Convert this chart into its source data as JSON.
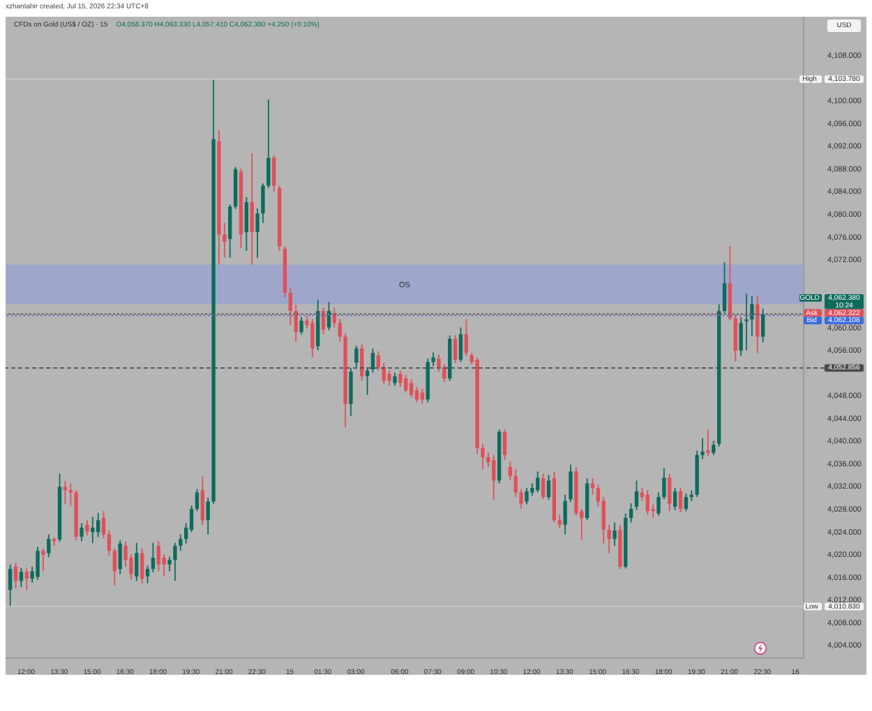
{
  "chart_data": {
    "type": "candlestick",
    "title": "CFDs on Gold (US$ / OZ) · 15",
    "subtitle": "O4,058.370 H4,063.330 L4,057.410 C4,062.380 +4.250 (+0.10%)",
    "ylabel": "USD",
    "annotations": [
      "xzhantahir created, Jul 15, 2026 22:34 UTC+8",
      "10:24"
    ],
    "categories": [
      null,
      null,
      null,
      "12:00",
      null,
      null,
      null,
      null,
      null,
      "13:30",
      null,
      null,
      null,
      null,
      null,
      "15:00",
      null,
      null,
      null,
      null,
      null,
      "16:30",
      null,
      null,
      null,
      null,
      null,
      "18:00",
      null,
      null,
      null,
      null,
      null,
      "19:30",
      null,
      null,
      null,
      null,
      null,
      "21:00",
      null,
      null,
      null,
      null,
      null,
      "22:30",
      null,
      null,
      null,
      null,
      null,
      "15",
      null,
      null,
      null,
      null,
      null,
      "01:30",
      null,
      null,
      null,
      null,
      null,
      "03:00",
      null,
      null,
      null,
      null,
      null,
      null,
      null,
      "06:00",
      null,
      null,
      null,
      null,
      null,
      "07:30",
      null,
      null,
      null,
      null,
      null,
      "09:00",
      null,
      null,
      null,
      null,
      null,
      "10:30",
      null,
      null,
      null,
      null,
      null,
      "12:00",
      null,
      null,
      null,
      null,
      null,
      "13:30",
      null,
      null,
      null,
      null,
      null,
      "15:00",
      null,
      null,
      null,
      null,
      null,
      "16:30",
      null,
      null,
      null,
      null,
      null,
      "18:00",
      null,
      null,
      null,
      null,
      null,
      "19:30",
      null,
      null,
      null,
      null,
      null,
      "21:00",
      null,
      null,
      null,
      null,
      null,
      "22:30",
      null,
      null,
      null,
      null,
      null,
      "16",
      null
    ],
    "ohlc": [
      [
        4013.7,
        4018.2,
        4010.83,
        4017.4
      ],
      [
        4017.8,
        4018.5,
        4014.0,
        4015.3
      ],
      [
        4015.3,
        4017.6,
        4014.2,
        4016.9
      ],
      [
        4016.9,
        4017.5,
        4013.7,
        4015.7
      ],
      [
        4015.7,
        4017.8,
        4015.0,
        4017.0
      ],
      [
        4016.0,
        4021.3,
        4015.5,
        4020.6
      ],
      [
        4020.6,
        4021.0,
        4017.0,
        4019.9
      ],
      [
        4020.2,
        4023.5,
        4019.5,
        4022.7
      ],
      [
        4022.7,
        4023.0,
        4021.5,
        4022.3
      ],
      [
        4022.6,
        4034.2,
        4022.2,
        4031.9
      ],
      [
        4031.9,
        4032.9,
        4028.9,
        4031.3
      ],
      [
        4031.3,
        4032.5,
        4028.5,
        4030.9
      ],
      [
        4030.9,
        4031.3,
        4022.5,
        4023.1
      ],
      [
        4023.1,
        4025.5,
        4022.3,
        4024.7
      ],
      [
        4025.2,
        4026.0,
        4023.3,
        4024.0
      ],
      [
        4023.9,
        4026.6,
        4022.0,
        4024.7
      ],
      [
        4023.9,
        4027.3,
        4023.0,
        4026.0
      ],
      [
        4026.4,
        4027.6,
        4022.8,
        4023.5
      ],
      [
        4023.5,
        4024.2,
        4019.8,
        4020.6
      ],
      [
        4020.6,
        4021.0,
        4014.5,
        4017.0
      ],
      [
        4017.4,
        4022.5,
        4016.5,
        4021.9
      ],
      [
        4021.5,
        4022.3,
        4017.8,
        4019.0
      ],
      [
        4019.4,
        4020.0,
        4015.5,
        4016.5
      ],
      [
        4016.1,
        4022.0,
        4015.3,
        4020.2
      ],
      [
        4020.2,
        4021.0,
        4014.8,
        4015.7
      ],
      [
        4016.1,
        4018.0,
        4014.9,
        4017.4
      ],
      [
        4017.4,
        4022.0,
        4016.8,
        4019.4
      ],
      [
        4021.5,
        4022.3,
        4017.0,
        4018.2
      ],
      [
        4019.4,
        4020.0,
        4016.1,
        4018.2
      ],
      [
        4018.2,
        4019.6,
        4017.0,
        4019.0
      ],
      [
        4019.0,
        4022.0,
        4015.3,
        4021.5
      ],
      [
        4021.5,
        4023.5,
        4020.6,
        4022.7
      ],
      [
        4022.7,
        4025.5,
        4021.9,
        4024.7
      ],
      [
        4024.3,
        4028.6,
        4023.9,
        4028.0
      ],
      [
        4028.0,
        4031.5,
        4027.6,
        4030.9
      ],
      [
        4031.3,
        4033.7,
        4025.2,
        4026.0
      ],
      [
        4026.0,
        4030.0,
        4023.5,
        4029.3
      ],
      [
        4029.3,
        4103.78,
        4028.9,
        4093.2
      ],
      [
        4092.8,
        4094.8,
        4071.1,
        4076.4
      ],
      [
        4076.4,
        4078.4,
        4072.3,
        4075.1
      ],
      [
        4075.6,
        4081.7,
        4072.3,
        4081.3
      ],
      [
        4081.3,
        4088.3,
        4080.9,
        4087.9
      ],
      [
        4087.5,
        4088.0,
        4074.0,
        4076.4
      ],
      [
        4076.8,
        4083.0,
        4073.5,
        4082.1
      ],
      [
        4082.1,
        4090.7,
        4071.1,
        4076.8
      ],
      [
        4076.8,
        4081.0,
        4072.3,
        4080.1
      ],
      [
        4080.1,
        4085.4,
        4078.4,
        4085.0
      ],
      [
        4085.0,
        4100.2,
        4084.6,
        4089.9
      ],
      [
        4089.9,
        4090.3,
        4084.0,
        4085.0
      ],
      [
        4084.6,
        4085.0,
        4073.5,
        4074.3
      ],
      [
        4073.9,
        4074.3,
        4065.3,
        4066.1
      ],
      [
        4066.1,
        4067.0,
        4060.4,
        4062.9
      ],
      [
        4062.9,
        4064.0,
        4057.5,
        4059.2
      ],
      [
        4059.2,
        4061.8,
        4058.8,
        4061.2
      ],
      [
        4061.2,
        4062.0,
        4059.8,
        4060.4
      ],
      [
        4060.8,
        4061.5,
        4054.7,
        4056.3
      ],
      [
        4056.7,
        4064.9,
        4056.0,
        4062.9
      ],
      [
        4062.9,
        4063.5,
        4058.8,
        4059.6
      ],
      [
        4060.0,
        4064.5,
        4059.5,
        4062.9
      ],
      [
        4062.5,
        4063.5,
        4060.0,
        4060.8
      ],
      [
        4060.8,
        4061.5,
        4057.5,
        4058.4
      ],
      [
        4058.4,
        4059.0,
        4042.4,
        4046.5
      ],
      [
        4046.5,
        4052.8,
        4044.4,
        4052.2
      ],
      [
        4053.8,
        4056.8,
        4053.0,
        4056.3
      ],
      [
        4056.3,
        4057.0,
        4050.6,
        4051.4
      ],
      [
        4051.4,
        4053.0,
        4048.1,
        4052.4
      ],
      [
        4052.6,
        4056.3,
        4052.0,
        4055.5
      ],
      [
        4055.1,
        4055.8,
        4052.4,
        4053.0
      ],
      [
        4053.0,
        4053.8,
        4050.0,
        4050.6
      ],
      [
        4051.8,
        4052.4,
        4049.7,
        4050.6
      ],
      [
        4050.2,
        4052.0,
        4049.7,
        4051.4
      ],
      [
        4051.8,
        4052.4,
        4049.5,
        4050.2
      ],
      [
        4051.0,
        4051.6,
        4048.5,
        4048.9
      ],
      [
        4050.2,
        4050.8,
        4047.7,
        4048.1
      ],
      [
        4048.9,
        4049.5,
        4046.8,
        4047.3
      ],
      [
        4048.5,
        4049.2,
        4046.5,
        4047.3
      ],
      [
        4047.3,
        4054.5,
        4046.8,
        4053.9
      ],
      [
        4053.9,
        4055.6,
        4053.2,
        4054.7
      ],
      [
        4054.5,
        4055.2,
        4052.2,
        4053.0
      ],
      [
        4053.0,
        4053.5,
        4050.4,
        4051.0
      ],
      [
        4051.0,
        4058.6,
        4050.6,
        4058.0
      ],
      [
        4058.0,
        4058.6,
        4053.7,
        4054.3
      ],
      [
        4054.3,
        4060.0,
        4053.9,
        4058.8
      ],
      [
        4058.8,
        4061.5,
        4055.0,
        4055.5
      ],
      [
        4055.1,
        4055.5,
        4053.5,
        4053.9
      ],
      [
        4054.3,
        4054.7,
        4037.7,
        4038.7
      ],
      [
        4038.7,
        4039.5,
        4035.0,
        4037.1
      ],
      [
        4037.1,
        4038.0,
        4035.4,
        4036.2
      ],
      [
        4036.6,
        4037.5,
        4029.5,
        4033.0
      ],
      [
        4033.0,
        4042.0,
        4032.5,
        4041.6
      ],
      [
        4041.6,
        4042.0,
        4036.6,
        4037.5
      ],
      [
        4035.4,
        4036.4,
        4033.0,
        4033.8
      ],
      [
        4033.8,
        4035.0,
        4030.1,
        4030.9
      ],
      [
        4030.9,
        4031.5,
        4028.0,
        4028.9
      ],
      [
        4029.3,
        4031.7,
        4028.8,
        4031.1
      ],
      [
        4030.9,
        4032.5,
        4030.3,
        4031.7
      ],
      [
        4031.3,
        4034.6,
        4030.9,
        4033.5
      ],
      [
        4033.4,
        4034.2,
        4029.7,
        4030.1
      ],
      [
        4030.1,
        4034.0,
        4029.6,
        4033.0
      ],
      [
        4033.4,
        4034.6,
        4025.6,
        4026.0
      ],
      [
        4026.0,
        4027.0,
        4024.6,
        4025.2
      ],
      [
        4025.2,
        4030.5,
        4023.5,
        4029.4
      ],
      [
        4029.7,
        4035.8,
        4029.2,
        4034.6
      ],
      [
        4034.6,
        4035.4,
        4026.8,
        4027.2
      ],
      [
        4027.6,
        4028.0,
        4022.5,
        4026.4
      ],
      [
        4026.4,
        4033.4,
        4026.0,
        4032.5
      ],
      [
        4032.5,
        4033.4,
        4030.5,
        4031.7
      ],
      [
        4031.7,
        4032.3,
        4028.4,
        4029.3
      ],
      [
        4029.4,
        4030.1,
        4021.9,
        4024.3
      ],
      [
        4024.3,
        4025.2,
        4020.2,
        4022.7
      ],
      [
        4022.7,
        4025.6,
        4021.5,
        4024.2
      ],
      [
        4024.3,
        4025.2,
        4017.4,
        4017.8
      ],
      [
        4017.8,
        4027.2,
        4017.5,
        4026.4
      ],
      [
        4026.4,
        4029.0,
        4025.6,
        4028.0
      ],
      [
        4028.4,
        4033.0,
        4027.8,
        4031.1
      ],
      [
        4030.9,
        4031.7,
        4029.4,
        4030.1
      ],
      [
        4030.5,
        4031.3,
        4027.0,
        4027.6
      ],
      [
        4028.0,
        4028.8,
        4026.4,
        4027.6
      ],
      [
        4027.2,
        4030.9,
        4026.8,
        4030.1
      ],
      [
        4030.1,
        4035.2,
        4029.7,
        4033.5
      ],
      [
        4033.5,
        4034.2,
        4027.6,
        4028.9
      ],
      [
        4028.4,
        4031.7,
        4027.8,
        4031.1
      ],
      [
        4031.1,
        4031.7,
        4027.4,
        4028.0
      ],
      [
        4028.0,
        4030.7,
        4027.6,
        4030.1
      ],
      [
        4030.1,
        4031.3,
        4029.4,
        4030.5
      ],
      [
        4030.5,
        4038.3,
        4030.1,
        4037.5
      ],
      [
        4037.5,
        4040.5,
        4036.8,
        4038.1
      ],
      [
        4038.3,
        4042.0,
        4037.3,
        4037.9
      ],
      [
        4037.9,
        4040.0,
        4037.5,
        4039.3
      ],
      [
        4039.5,
        4064.1,
        4039.0,
        4062.9
      ],
      [
        4062.9,
        4071.5,
        4062.5,
        4067.8
      ],
      [
        4067.8,
        4074.3,
        4061.2,
        4061.6
      ],
      [
        4061.6,
        4062.2,
        4054.0,
        4055.9
      ],
      [
        4055.9,
        4061.8,
        4055.0,
        4060.8
      ],
      [
        4061.1,
        4066.0,
        4056.0,
        4061.4
      ],
      [
        4061.4,
        4065.5,
        4058.5,
        4064.1
      ],
      [
        4064.1,
        4065.5,
        4055.5,
        4058.4
      ],
      [
        4058.37,
        4063.33,
        4057.41,
        4062.38
      ],
      null,
      null,
      null,
      null,
      null,
      null,
      null
    ],
    "colors": [
      "#0e6b5c",
      "#e0505a",
      "#0e6b5c",
      "#e0505a",
      "#0e6b5c",
      "#0e6b5c",
      "#e0505a",
      "#0e6b5c",
      "#e0505a",
      "#0e6b5c",
      "#e0505a",
      "#e0505a",
      "#e0505a",
      "#0e6b5c",
      "#e0505a",
      "#0e6b5c",
      "#0e6b5c",
      "#e0505a",
      "#e0505a",
      "#e0505a",
      "#0e6b5c",
      "#e0505a",
      "#e0505a",
      "#0e6b5c",
      "#e0505a",
      "#0e6b5c",
      "#0e6b5c",
      "#e0505a",
      "#e0505a",
      "#0e6b5c",
      "#0e6b5c",
      "#0e6b5c",
      "#0e6b5c",
      "#0e6b5c",
      "#0e6b5c",
      "#e0505a",
      "#0e6b5c",
      "#0e6b5c",
      "#e0505a",
      "#e0505a",
      "#0e6b5c",
      "#0e6b5c",
      "#e0505a",
      "#0e6b5c",
      "#e0505a",
      "#0e6b5c",
      "#0e6b5c",
      "#0e6b5c",
      "#e0505a",
      "#e0505a",
      "#e0505a",
      "#e0505a",
      "#e0505a",
      "#0e6b5c",
      "#e0505a",
      "#e0505a",
      "#0e6b5c",
      "#e0505a",
      "#0e6b5c",
      "#e0505a",
      "#e0505a",
      "#e0505a",
      "#0e6b5c",
      "#0e6b5c",
      "#e0505a",
      "#0e6b5c",
      "#0e6b5c",
      "#e0505a",
      "#e0505a",
      "#e0505a",
      "#0e6b5c",
      "#e0505a",
      "#e0505a",
      "#e0505a",
      "#e0505a",
      "#e0505a",
      "#0e6b5c",
      "#0e6b5c",
      "#e0505a",
      "#e0505a",
      "#0e6b5c",
      "#e0505a",
      "#0e6b5c",
      "#e0505a",
      "#e0505a",
      "#e0505a",
      "#e0505a",
      "#e0505a",
      "#e0505a",
      "#0e6b5c",
      "#e0505a",
      "#e0505a",
      "#e0505a",
      "#e0505a",
      "#0e6b5c",
      "#0e6b5c",
      "#0e6b5c",
      "#e0505a",
      "#0e6b5c",
      "#e0505a",
      "#e0505a",
      "#0e6b5c",
      "#0e6b5c",
      "#e0505a",
      "#e0505a",
      "#0e6b5c",
      "#e0505a",
      "#e0505a",
      "#e0505a",
      "#e0505a",
      "#0e6b5c",
      "#e0505a",
      "#0e6b5c",
      "#0e6b5c",
      "#0e6b5c",
      "#e0505a",
      "#e0505a",
      "#e0505a",
      "#0e6b5c",
      "#0e6b5c",
      "#e0505a",
      "#0e6b5c",
      "#e0505a",
      "#0e6b5c",
      "#0e6b5c",
      "#0e6b5c",
      "#0e6b5c",
      "#e0505a",
      "#0e6b5c",
      "#0e6b5c",
      "#0e6b5c",
      "#e0505a",
      "#e0505a",
      "#0e6b5c",
      "#0e6b5c",
      "#0e6b5c",
      "#e0505a",
      "#0e6b5c",
      null,
      null,
      null,
      null,
      null,
      null,
      null
    ],
    "ylim": [
      4001.7,
      4114.8
    ],
    "yticks": [
      {
        "value": 4004,
        "label": "4,004.000"
      },
      {
        "value": 4008,
        "label": "4,008.000"
      },
      {
        "value": 4012,
        "label": "4,012.000"
      },
      {
        "value": 4016,
        "label": "4,016.000"
      },
      {
        "value": 4020,
        "label": "4,020.000"
      },
      {
        "value": 4024,
        "label": "4,024.000"
      },
      {
        "value": 4028,
        "label": "4,028.000"
      },
      {
        "value": 4032,
        "label": "4,032.000"
      },
      {
        "value": 4036,
        "label": "4,036.000"
      },
      {
        "value": 4040,
        "label": "4,040.000"
      },
      {
        "value": 4044,
        "label": "4,044.000"
      },
      {
        "value": 4048,
        "label": "4,048.000"
      },
      {
        "value": 4056,
        "label": "4,056.000"
      },
      {
        "value": 4060,
        "label": "4,060.000"
      },
      {
        "value": 4072,
        "label": "4,072.000"
      },
      {
        "value": 4076,
        "label": "4,076.000"
      },
      {
        "value": 4080,
        "label": "4,080.000"
      },
      {
        "value": 4084,
        "label": "4,084.000"
      },
      {
        "value": 4088,
        "label": "4,088.000"
      },
      {
        "value": 4092,
        "label": "4,092.000"
      },
      {
        "value": 4096,
        "label": "4,096.000"
      },
      {
        "value": 4100,
        "label": "4,100.000"
      },
      {
        "value": 4108,
        "label": "4,108.000"
      }
    ],
    "ref_lines": [
      {
        "axis": "y",
        "value": 4103.78,
        "label": "High 4,103.780",
        "color": "#c8c8c8"
      },
      {
        "axis": "y",
        "value": 4062.38,
        "label": "GOLD 4,062.380",
        "color": "#0e6b5c",
        "line_style": "dotted"
      },
      {
        "axis": "y",
        "value": 4062.322,
        "label": "Ask 4,062.322",
        "color": "#e0505a",
        "line_style": "dotted"
      },
      {
        "axis": "y",
        "value": 4062.108,
        "label": "Bid 4,062.108",
        "color": "#3d6ae0",
        "line_style": "dotted"
      },
      {
        "axis": "y",
        "value": 4052.856,
        "label": "4,052.856",
        "color": "#4a4a4a",
        "line_style": "dashed"
      },
      {
        "axis": "y",
        "value": 4010.83,
        "label": "Low 4,010.830",
        "color": "#c8c8c8"
      }
    ],
    "bands": [
      {
        "axis": "y",
        "from": 4064.1,
        "to": 4071.1,
        "label": "OS",
        "color": "#9aa5cf"
      }
    ]
  }
}
